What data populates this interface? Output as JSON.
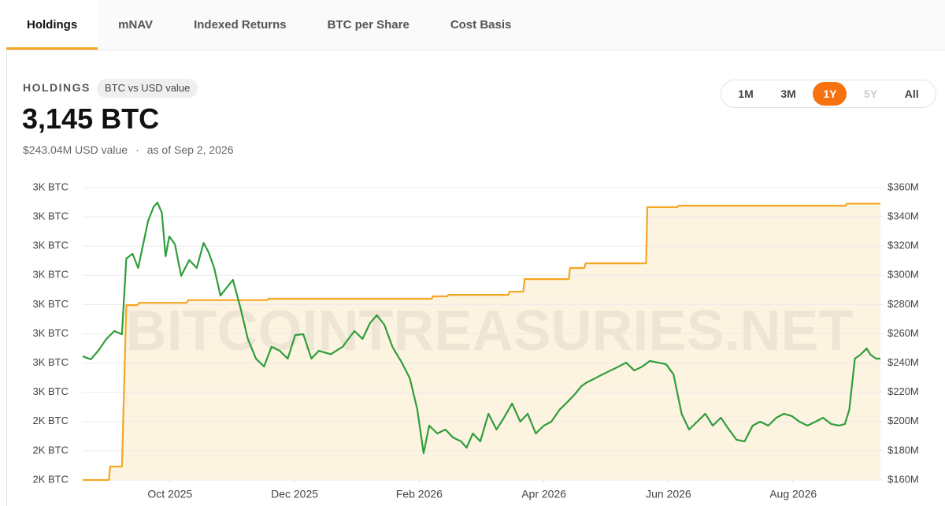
{
  "tabs": [
    {
      "label": "Holdings",
      "active": true
    },
    {
      "label": "mNAV"
    },
    {
      "label": "Indexed Returns"
    },
    {
      "label": "BTC per Share"
    },
    {
      "label": "Cost Basis"
    }
  ],
  "header": {
    "label": "HOLDINGS",
    "pill": "BTC vs USD value",
    "amount": "3,145 BTC",
    "usd_value": "$243.04M USD value",
    "separator": "·",
    "as_of": "as of Sep 2, 2026"
  },
  "ranges": [
    {
      "label": "1M"
    },
    {
      "label": "3M"
    },
    {
      "label": "1Y",
      "active": true
    },
    {
      "label": "5Y",
      "disabled": true
    },
    {
      "label": "All"
    }
  ],
  "chart_data": {
    "type": "line",
    "watermark": "BITCOINTREASURIES.NET",
    "grid": true,
    "xlim": [
      -0.4,
      12.4
    ],
    "xticks": [
      {
        "value": 1,
        "label": "Oct 2025"
      },
      {
        "value": 3,
        "label": "Dec 2025"
      },
      {
        "value": 5,
        "label": "Feb 2026"
      },
      {
        "value": 7,
        "label": "Apr 2026"
      },
      {
        "value": 9,
        "label": "Jun 2026"
      },
      {
        "value": 11,
        "label": "Aug 2026"
      }
    ],
    "ylim": [
      2200,
      3200
    ],
    "yticks": [
      {
        "value": 2200,
        "label": "2K BTC"
      },
      {
        "value": 2300,
        "label": "2K BTC"
      },
      {
        "value": 2400,
        "label": "2K BTC"
      },
      {
        "value": 2500,
        "label": "3K BTC"
      },
      {
        "value": 2600,
        "label": "3K BTC"
      },
      {
        "value": 2700,
        "label": "3K BTC"
      },
      {
        "value": 2800,
        "label": "3K BTC"
      },
      {
        "value": 2900,
        "label": "3K BTC"
      },
      {
        "value": 3000,
        "label": "3K BTC"
      },
      {
        "value": 3100,
        "label": "3K BTC"
      },
      {
        "value": 3200,
        "label": "3K BTC"
      }
    ],
    "y2lim": [
      160,
      360
    ],
    "y2ticks": [
      {
        "value": 160,
        "label": "$160M"
      },
      {
        "value": 180,
        "label": "$180M"
      },
      {
        "value": 200,
        "label": "$200M"
      },
      {
        "value": 220,
        "label": "$220M"
      },
      {
        "value": 240,
        "label": "$240M"
      },
      {
        "value": 260,
        "label": "$260M"
      },
      {
        "value": 280,
        "label": "$280M"
      },
      {
        "value": 300,
        "label": "$300M"
      },
      {
        "value": 320,
        "label": "$320M"
      },
      {
        "value": 340,
        "label": "$340M"
      },
      {
        "value": 360,
        "label": "$360M"
      }
    ],
    "series": [
      {
        "color": "#f5a623",
        "fill": "#fdf3e1",
        "axis": "y",
        "x": [
          -0.4,
          0.02,
          0.04,
          0.23,
          0.3,
          0.48,
          0.5,
          1.27,
          1.29,
          2.56,
          2.58,
          5.2,
          5.22,
          5.45,
          5.47,
          6.43,
          6.45,
          6.67,
          6.69,
          7.4,
          7.42,
          7.65,
          7.67,
          8.64,
          8.66,
          9.14,
          9.16,
          11.84,
          11.86,
          12.4
        ],
        "values": [
          2200,
          2200,
          2246,
          2246,
          2798,
          2798,
          2806,
          2806,
          2815,
          2815,
          2820,
          2820,
          2828,
          2828,
          2833,
          2833,
          2844,
          2844,
          2887,
          2887,
          2925,
          2925,
          2941,
          2941,
          3133,
          3133,
          3138,
          3138,
          3145,
          3145
        ]
      },
      {
        "color": "#2e9e3a",
        "axis": "y2",
        "x": [
          -0.4,
          -0.27,
          -0.15,
          -0.02,
          0.11,
          0.23,
          0.3,
          0.4,
          0.49,
          0.57,
          0.65,
          0.74,
          0.8,
          0.87,
          0.93,
          0.99,
          1.08,
          1.18,
          1.31,
          1.43,
          1.54,
          1.62,
          1.71,
          1.81,
          1.91,
          2.01,
          2.13,
          2.25,
          2.38,
          2.51,
          2.63,
          2.76,
          2.89,
          3.01,
          3.14,
          3.27,
          3.39,
          3.58,
          3.77,
          3.96,
          4.09,
          4.21,
          4.32,
          4.44,
          4.57,
          4.72,
          4.85,
          4.97,
          5.07,
          5.16,
          5.29,
          5.42,
          5.54,
          5.67,
          5.76,
          5.86,
          5.98,
          6.11,
          6.24,
          6.36,
          6.49,
          6.62,
          6.74,
          6.87,
          7.0,
          7.12,
          7.25,
          7.38,
          7.5,
          7.6,
          7.69,
          7.82,
          7.94,
          8.07,
          8.2,
          8.32,
          8.45,
          8.58,
          8.7,
          8.83,
          8.96,
          9.08,
          9.21,
          9.33,
          9.46,
          9.59,
          9.71,
          9.84,
          9.97,
          10.09,
          10.22,
          10.35,
          10.47,
          10.6,
          10.73,
          10.85,
          10.98,
          11.1,
          11.23,
          11.36,
          11.48,
          11.61,
          11.74,
          11.83,
          11.9,
          11.99,
          12.08,
          12.18,
          12.24,
          12.33,
          12.4
        ],
        "values": [
          244.6,
          242.5,
          248.4,
          256.5,
          261.9,
          259.7,
          311.5,
          314.7,
          305.0,
          321.2,
          337.3,
          347.0,
          349.7,
          342.7,
          313.1,
          326.6,
          321.2,
          299.6,
          310.4,
          305.0,
          322.2,
          315.8,
          305.0,
          286.1,
          291.5,
          296.9,
          278.0,
          256.5,
          243.0,
          237.6,
          251.1,
          248.4,
          243.0,
          259.2,
          259.7,
          243.0,
          248.4,
          246.0,
          251.1,
          261.9,
          256.5,
          267.3,
          272.7,
          266.2,
          251.1,
          240.3,
          229.5,
          208.0,
          178.3,
          197.2,
          191.8,
          194.5,
          189.1,
          186.4,
          182.1,
          191.8,
          186.4,
          205.3,
          194.5,
          202.6,
          212.3,
          199.9,
          205.3,
          191.8,
          197.2,
          199.9,
          208.0,
          213.4,
          218.8,
          224.1,
          226.8,
          229.5,
          232.2,
          234.9,
          237.6,
          240.3,
          234.9,
          237.6,
          241.4,
          240.3,
          239.2,
          232.2,
          205.3,
          194.5,
          199.9,
          205.3,
          197.2,
          202.6,
          194.5,
          187.5,
          186.4,
          197.2,
          199.9,
          197.2,
          202.6,
          205.3,
          203.7,
          199.9,
          197.2,
          199.9,
          202.6,
          198.3,
          197.2,
          198.3,
          208.0,
          243.0,
          245.7,
          250.0,
          245.7,
          243.0,
          243.0
        ]
      }
    ]
  }
}
